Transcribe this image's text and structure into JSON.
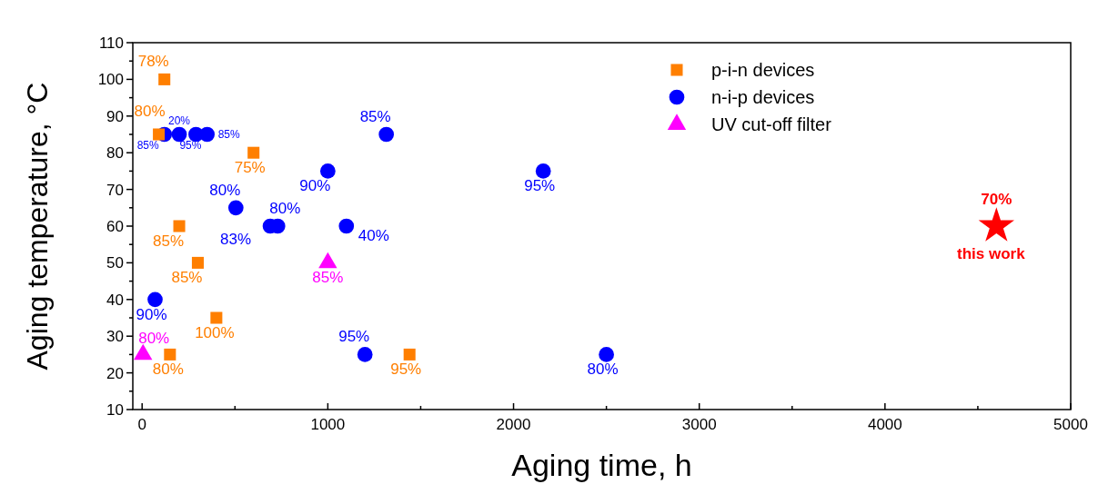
{
  "chart_data": {
    "type": "scatter",
    "xlabel": "Aging time, h",
    "ylabel": "Aging temperature, °C",
    "xlim": [
      -50,
      5000
    ],
    "xticks": [
      0,
      {
        "value": 500,
        "label": null
      },
      1000,
      {
        "value": 1500,
        "label": null
      },
      2000,
      {
        "value": 2500,
        "label": null
      },
      3000,
      {
        "value": 3500,
        "label": null
      },
      4000,
      {
        "value": 4500,
        "label": null
      },
      5000
    ],
    "ylim": [
      10,
      110
    ],
    "yticks": [
      10,
      {
        "value": 15,
        "label": null
      },
      20,
      {
        "value": 25,
        "label": null
      },
      30,
      {
        "value": 35,
        "label": null
      },
      40,
      {
        "value": 45,
        "label": null
      },
      50,
      {
        "value": 55,
        "label": null
      },
      60,
      {
        "value": 65,
        "label": null
      },
      70,
      {
        "value": 75,
        "label": null
      },
      80,
      {
        "value": 85,
        "label": null
      },
      90,
      {
        "value": 95,
        "label": null
      },
      100,
      {
        "value": 105,
        "label": null
      },
      110
    ],
    "grid": false,
    "legend": "top right",
    "series": [
      {
        "name": "p-i-n devices",
        "color": "#ff7f00",
        "marker": "square",
        "x": [
          120,
          90,
          600,
          200,
          300,
          400,
          150,
          1440
        ],
        "values": [
          100,
          85,
          80,
          60,
          50,
          35,
          25,
          25
        ]
      },
      {
        "name": "n-i-p devices",
        "color": "#0000ff",
        "marker": "circle",
        "x": [
          120,
          200,
          290,
          350,
          1315,
          1000,
          2160,
          505,
          690,
          730,
          1100,
          70,
          1200,
          2500
        ],
        "values": [
          85,
          85,
          85,
          85,
          85,
          75,
          75,
          65,
          60,
          60,
          60,
          40,
          25,
          25
        ]
      },
      {
        "name": "UV cut-off filter",
        "color": "#ff00ff",
        "marker": "triangle",
        "x": [
          5,
          1000
        ],
        "values": [
          25,
          50
        ]
      },
      {
        "color": "#ff0000",
        "marker": "star",
        "x": [
          4600
        ],
        "values": [
          60
        ]
      }
    ],
    "annotations": [
      {
        "text": "78%",
        "x": 120,
        "y": 100
      },
      {
        "text": "80%",
        "x": 90,
        "y": 85
      },
      {
        "text": "75%",
        "x": 600,
        "y": 80
      },
      {
        "text": "85%",
        "x": 200,
        "y": 60
      },
      {
        "text": "85%",
        "x": 300,
        "y": 50
      },
      {
        "text": "100%",
        "x": 400,
        "y": 35
      },
      {
        "text": "80%",
        "x": 150,
        "y": 25
      },
      {
        "text": "95%",
        "x": 1440,
        "y": 25
      },
      {
        "text": "85%",
        "x": 120,
        "y": 85
      },
      {
        "text": "20%",
        "x": 200,
        "y": 85
      },
      {
        "text": "95%",
        "x": 290,
        "y": 85
      },
      {
        "text": "85%",
        "x": 350,
        "y": 85
      },
      {
        "text": "85%",
        "x": 1315,
        "y": 85
      },
      {
        "text": "90%",
        "x": 1000,
        "y": 75
      },
      {
        "text": "95%",
        "x": 2160,
        "y": 75
      },
      {
        "text": "80%",
        "x": 505,
        "y": 65
      },
      {
        "text": "83%",
        "x": 690,
        "y": 60
      },
      {
        "text": "80%",
        "x": 730,
        "y": 60
      },
      {
        "text": "40%",
        "x": 1100,
        "y": 60
      },
      {
        "text": "90%",
        "x": 70,
        "y": 40
      },
      {
        "text": "95%",
        "x": 1200,
        "y": 25
      },
      {
        "text": "80%",
        "x": 2500,
        "y": 25
      },
      {
        "text": "80%",
        "x": 5,
        "y": 25
      },
      {
        "text": "85%",
        "x": 1000,
        "y": 50
      },
      {
        "text": "70%",
        "x": 4600,
        "y": 60
      },
      {
        "text": "this work",
        "x": 4600,
        "y": 60
      }
    ]
  }
}
